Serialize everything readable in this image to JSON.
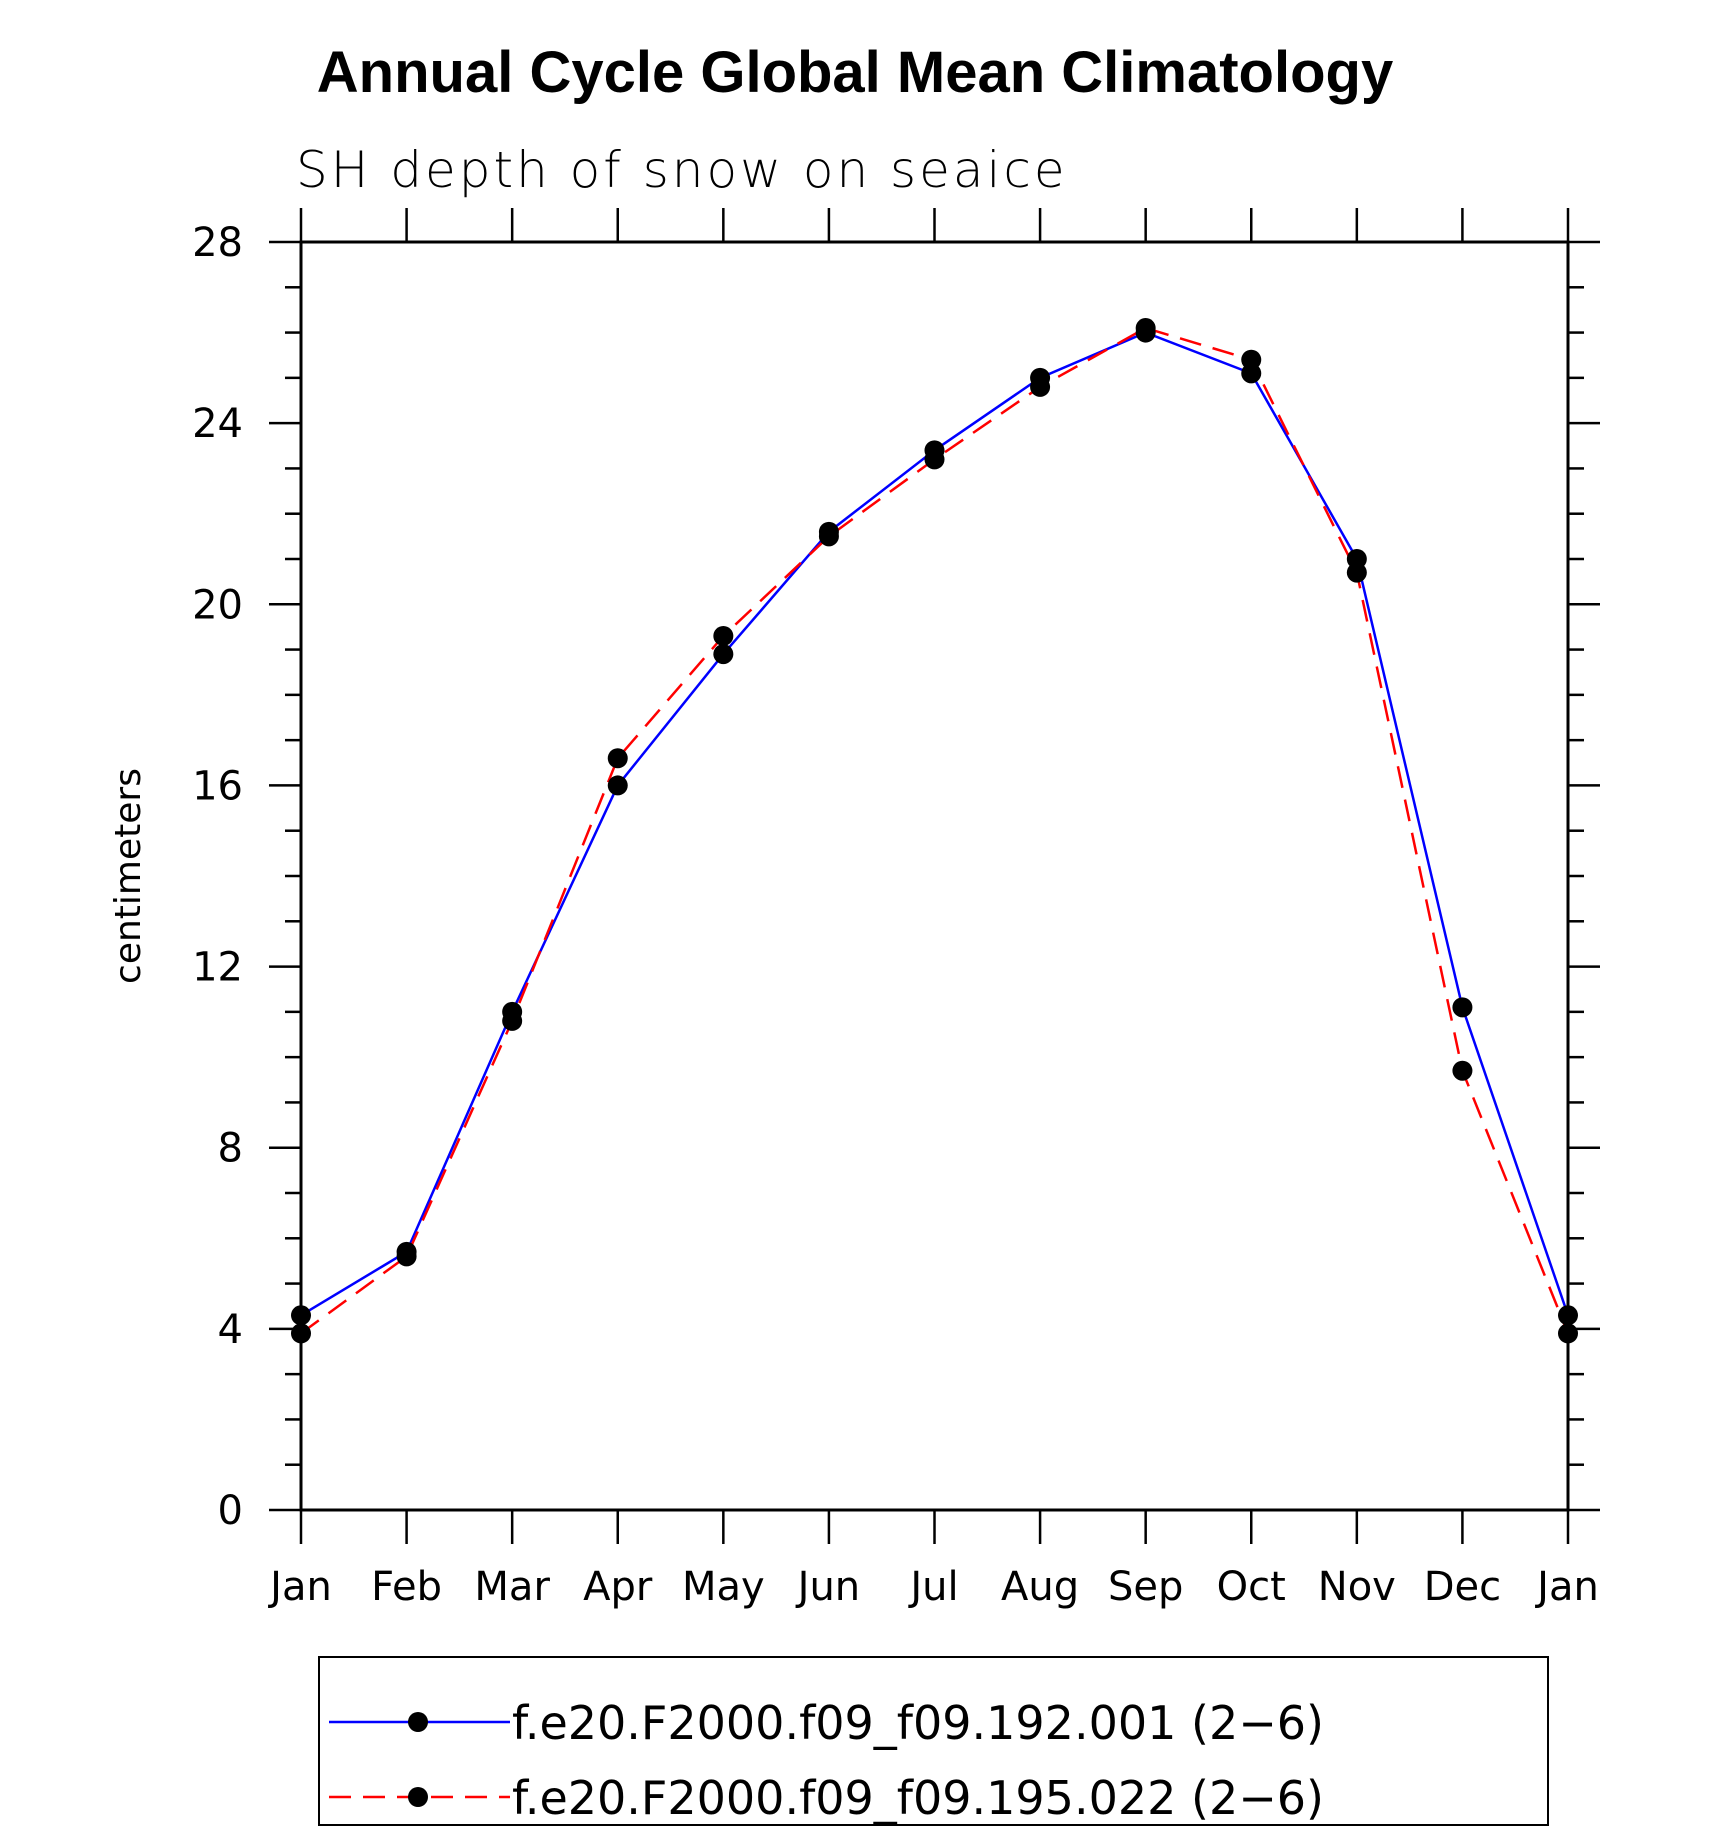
{
  "chart_data": {
    "type": "line",
    "title": "Annual Cycle Global Mean Climatology",
    "subtitle": "SH depth of snow on seaice",
    "xlabel": "",
    "ylabel": "centimeters",
    "categories": [
      "Jan",
      "Feb",
      "Mar",
      "Apr",
      "May",
      "Jun",
      "Jul",
      "Aug",
      "Sep",
      "Oct",
      "Nov",
      "Dec",
      "Jan"
    ],
    "ylim": [
      0,
      28
    ],
    "yticks": [
      "0",
      "4",
      "8",
      "12",
      "16",
      "20",
      "24",
      "28"
    ],
    "grid": false,
    "legend_position": "bottom",
    "series": [
      {
        "name": "f.e20.F2000.f09_f09.192.001 (2−6)",
        "color": "#0000ff",
        "line_style": "solid",
        "marker": "filled-circle",
        "values": [
          4.3,
          5.7,
          11.0,
          16.0,
          18.9,
          21.6,
          23.4,
          25.0,
          26.0,
          25.1,
          21.0,
          11.1,
          4.3
        ]
      },
      {
        "name": "f.e20.F2000.f09_f09.195.022 (2−6)",
        "color": "#ff0000",
        "line_style": "dashed",
        "marker": "filled-circle",
        "values": [
          3.9,
          5.6,
          10.8,
          16.6,
          19.3,
          21.5,
          23.2,
          24.8,
          26.1,
          25.4,
          20.7,
          9.7,
          3.9
        ]
      }
    ]
  }
}
